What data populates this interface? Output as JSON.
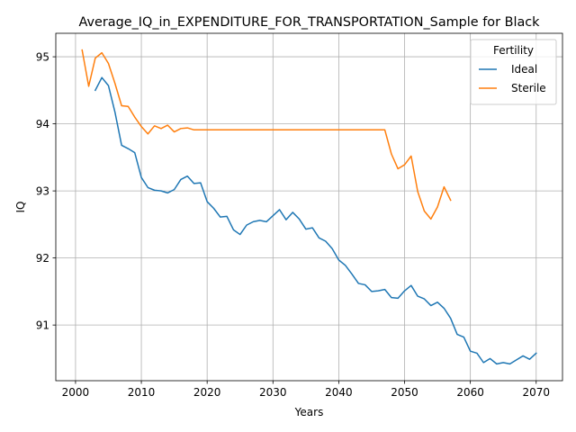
{
  "chart_data": {
    "type": "line",
    "title": "Average_IQ_in_EXPENDITURE_FOR_TRANSPORTATION_Sample for Black",
    "xlabel": "Years",
    "ylabel": "IQ",
    "xlim": [
      1997,
      2074
    ],
    "ylim": [
      90.17,
      95.35
    ],
    "xticks": [
      2000,
      2010,
      2020,
      2030,
      2040,
      2050,
      2060,
      2070
    ],
    "xtick_labels": [
      "2000",
      "2010",
      "2020",
      "2030",
      "2040",
      "2050",
      "2060",
      "2070"
    ],
    "yticks": [
      91,
      92,
      93,
      94,
      95
    ],
    "ytick_labels": [
      "91",
      "92",
      "93",
      "94",
      "95"
    ],
    "grid": true,
    "legend": {
      "title": "Fertility",
      "position": "top-right"
    },
    "series": [
      {
        "name": "Ideal",
        "color": "#1f77b4",
        "x": [
          2003,
          2004,
          2005,
          2006,
          2007,
          2008,
          2009,
          2010,
          2011,
          2012,
          2013,
          2014,
          2015,
          2016,
          2017,
          2018,
          2019,
          2020,
          2021,
          2022,
          2023,
          2024,
          2025,
          2026,
          2027,
          2028,
          2029,
          2030,
          2031,
          2032,
          2033,
          2034,
          2035,
          2036,
          2037,
          2038,
          2039,
          2040,
          2041,
          2042,
          2043,
          2044,
          2045,
          2046,
          2047,
          2048,
          2049,
          2050,
          2051,
          2052,
          2053,
          2054,
          2055,
          2056,
          2057,
          2058,
          2059,
          2060,
          2061,
          2062,
          2063,
          2064,
          2065,
          2066,
          2067,
          2068,
          2069,
          2070
        ],
        "y": [
          94.5,
          94.69,
          94.57,
          94.17,
          93.68,
          93.63,
          93.57,
          93.2,
          93.05,
          93.01,
          93.0,
          92.97,
          93.02,
          93.17,
          93.22,
          93.11,
          93.12,
          92.84,
          92.74,
          92.61,
          92.62,
          92.42,
          92.35,
          92.49,
          92.54,
          92.56,
          92.54,
          92.63,
          92.72,
          92.57,
          92.68,
          92.58,
          92.43,
          92.45,
          92.3,
          92.25,
          92.14,
          91.97,
          91.89,
          91.76,
          91.62,
          91.6,
          91.5,
          91.51,
          91.53,
          91.41,
          91.4,
          91.51,
          91.59,
          91.43,
          91.39,
          91.29,
          91.34,
          91.25,
          91.1,
          90.86,
          90.82,
          90.61,
          90.58,
          90.44,
          90.5,
          90.42,
          90.44,
          90.42,
          90.48,
          90.54,
          90.49,
          90.58
        ]
      },
      {
        "name": "Sterile",
        "color": "#ff7f0e",
        "x": [
          2001,
          2002,
          2003,
          2004,
          2005,
          2006,
          2007,
          2008,
          2009,
          2010,
          2011,
          2012,
          2013,
          2014,
          2015,
          2016,
          2017,
          2018,
          2019,
          2020,
          2021,
          2022,
          2023,
          2024,
          2025,
          2026,
          2027,
          2028,
          2029,
          2030,
          2031,
          2032,
          2033,
          2034,
          2035,
          2036,
          2037,
          2038,
          2039,
          2040,
          2041,
          2042,
          2043,
          2044,
          2045,
          2046,
          2047,
          2048,
          2049,
          2050,
          2051,
          2052,
          2053,
          2054,
          2055,
          2056,
          2057
        ],
        "y": [
          95.1,
          94.56,
          94.98,
          95.06,
          94.9,
          94.6,
          94.27,
          94.26,
          94.1,
          93.96,
          93.85,
          93.97,
          93.93,
          93.98,
          93.88,
          93.93,
          93.94,
          93.91,
          93.91,
          93.91,
          93.91,
          93.91,
          93.91,
          93.91,
          93.91,
          93.91,
          93.91,
          93.91,
          93.91,
          93.91,
          93.91,
          93.91,
          93.91,
          93.91,
          93.91,
          93.91,
          93.91,
          93.91,
          93.91,
          93.91,
          93.91,
          93.91,
          93.91,
          93.91,
          93.91,
          93.91,
          93.91,
          93.55,
          93.33,
          93.39,
          93.52,
          92.99,
          92.7,
          92.58,
          92.76,
          93.06,
          92.86
        ]
      }
    ]
  }
}
